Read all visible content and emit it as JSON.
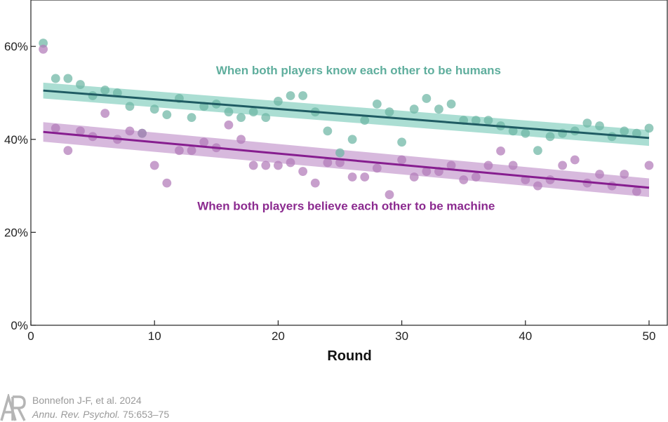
{
  "chart_data": {
    "type": "scatter",
    "xlabel": "Round",
    "ylabel": "",
    "xlim": [
      0,
      51.5
    ],
    "ylim": [
      0,
      70
    ],
    "xticks": [
      0,
      10,
      20,
      30,
      40,
      50
    ],
    "xtick_labels": [
      "0",
      "10",
      "20",
      "30",
      "40",
      "50"
    ],
    "yticks": [
      0,
      20,
      40,
      60
    ],
    "ytick_labels": [
      "0%",
      "20%",
      "40%",
      "60%"
    ],
    "grid": false,
    "series": [
      {
        "name": "When both players know each other to be humans",
        "color": "#6cb5a3",
        "line_color": "#1f5b63",
        "band_color": "#8fd3c4",
        "x": [
          1,
          2,
          3,
          4,
          5,
          6,
          7,
          8,
          9,
          10,
          11,
          12,
          13,
          14,
          15,
          16,
          17,
          18,
          19,
          20,
          21,
          22,
          23,
          24,
          25,
          26,
          27,
          28,
          29,
          30,
          31,
          32,
          33,
          34,
          35,
          36,
          37,
          38,
          39,
          40,
          41,
          42,
          43,
          44,
          45,
          46,
          47,
          48,
          49,
          50
        ],
        "values": [
          60.7,
          53.1,
          53.1,
          51.8,
          49.4,
          50.6,
          50.0,
          47.1,
          41.3,
          46.5,
          45.3,
          48.8,
          44.7,
          47.1,
          47.6,
          45.9,
          44.7,
          45.9,
          44.7,
          48.2,
          49.4,
          49.4,
          45.9,
          41.8,
          37.1,
          40.0,
          44.1,
          47.6,
          45.9,
          39.4,
          46.5,
          48.8,
          46.5,
          47.6,
          44.1,
          44.1,
          44.1,
          42.9,
          41.8,
          41.3,
          37.6,
          40.6,
          41.3,
          41.8,
          43.5,
          42.9,
          40.6,
          41.8,
          41.3,
          42.4
        ],
        "trend": {
          "x": [
            1,
            50
          ],
          "y": [
            50.5,
            40.3
          ]
        },
        "band": {
          "upper": [
            52.2,
            42.0
          ],
          "lower": [
            48.8,
            38.6
          ]
        }
      },
      {
        "name": "When both players believe each other to be machine",
        "color": "#b27ab9",
        "line_color": "#861d8f",
        "band_color": "#c9a2d1",
        "x": [
          1,
          2,
          3,
          4,
          5,
          6,
          7,
          8,
          9,
          10,
          11,
          12,
          13,
          14,
          15,
          16,
          17,
          18,
          19,
          20,
          21,
          22,
          23,
          24,
          25,
          26,
          27,
          28,
          29,
          30,
          31,
          32,
          33,
          34,
          35,
          36,
          37,
          38,
          39,
          40,
          41,
          42,
          43,
          44,
          45,
          46,
          47,
          48,
          49,
          50
        ],
        "values": [
          59.4,
          42.4,
          37.6,
          41.8,
          40.6,
          45.6,
          40.0,
          41.8,
          41.3,
          34.4,
          30.6,
          37.6,
          37.6,
          39.4,
          38.2,
          43.1,
          40.0,
          34.4,
          34.4,
          34.4,
          35.0,
          33.1,
          30.6,
          35.0,
          35.0,
          31.9,
          31.9,
          33.8,
          28.1,
          35.6,
          31.9,
          33.1,
          33.1,
          34.4,
          31.3,
          31.9,
          34.4,
          37.5,
          34.4,
          31.3,
          30.0,
          31.3,
          34.4,
          35.6,
          30.6,
          32.5,
          30.0,
          32.5,
          28.8,
          34.4
        ],
        "trend": {
          "x": [
            1,
            50
          ],
          "y": [
            41.6,
            29.6
          ]
        },
        "band": {
          "upper": [
            43.7,
            31.6
          ],
          "lower": [
            39.5,
            27.6
          ]
        }
      }
    ],
    "annotations": [
      {
        "text": "When both players know each other to be humans",
        "x": 26.5,
        "y": 54.0,
        "color": "#5fae9d"
      },
      {
        "text": "When both players believe each other to be machine",
        "x": 25.5,
        "y": 24.8,
        "color": "#8b2a8f"
      }
    ]
  },
  "credit": {
    "logo_text": "AR",
    "citation": "Bonnefon J-F, et al. 2024",
    "journal": "Annu. Rev. Psychol.",
    "pages": "75:653–75"
  },
  "colors": {
    "axis": "#222222",
    "credit_text": "#999999"
  }
}
